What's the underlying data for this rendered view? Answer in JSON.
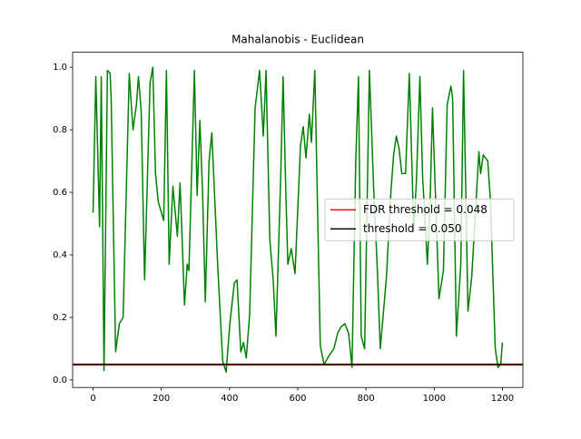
{
  "chart_data": {
    "type": "line",
    "title": "Mahalanobis - Euclidean",
    "xlim": [
      -60,
      1260
    ],
    "xticks": [
      0,
      200,
      400,
      600,
      800,
      1000,
      1200
    ],
    "ylim": [
      -0.024,
      1.048
    ],
    "yticks": [
      {
        "value": 0,
        "label": "0.0"
      },
      {
        "value": 0.2,
        "label": "0.2"
      },
      {
        "value": 0.4,
        "label": "0.4"
      },
      {
        "value": 0.6,
        "label": "0.6"
      },
      {
        "value": 0.8,
        "label": "0.8"
      },
      {
        "value": 1,
        "label": "1.0"
      }
    ],
    "series": [
      {
        "color": "#008000",
        "x": [
          0,
          8,
          19,
          24,
          32,
          42,
          50,
          53,
          66,
          77,
          88,
          106,
          117,
          127,
          133,
          141,
          151,
          167,
          175,
          183,
          191,
          207,
          215,
          223,
          234,
          247,
          255,
          268,
          276,
          281,
          297,
          305,
          313,
          321,
          329,
          340,
          348,
          366,
          380,
          390,
          401,
          414,
          422,
          433,
          441,
          449,
          459,
          475,
          488,
          499,
          507,
          518,
          528,
          536,
          550,
          557,
          565,
          571,
          581,
          592,
          608,
          616,
          624,
          634,
          640,
          650,
          658,
          666,
          677,
          693,
          706,
          717,
          727,
          738,
          749,
          759,
          770,
          778,
          786,
          796,
          810,
          823,
          833,
          842,
          860,
          873,
          881,
          889,
          897,
          905,
          916,
          927,
          940,
          948,
          958,
          966,
          980,
          988,
          995,
          1014,
          1027,
          1038,
          1049,
          1054,
          1065,
          1078,
          1086,
          1099,
          1110,
          1131,
          1136,
          1144,
          1157,
          1165,
          1179,
          1187,
          1195,
          1200
        ],
        "values": [
          0.535,
          0.97,
          0.49,
          0.97,
          0.03,
          0.99,
          0.98,
          0.9,
          0.09,
          0.18,
          0.2,
          0.98,
          0.8,
          0.88,
          0.97,
          0.86,
          0.32,
          0.95,
          1.0,
          0.66,
          0.57,
          0.51,
          0.99,
          0.37,
          0.62,
          0.46,
          0.63,
          0.24,
          0.37,
          0.35,
          0.99,
          0.59,
          0.83,
          0.6,
          0.25,
          0.7,
          0.79,
          0.35,
          0.06,
          0.025,
          0.18,
          0.31,
          0.32,
          0.09,
          0.12,
          0.07,
          0.21,
          0.87,
          0.99,
          0.78,
          0.99,
          0.45,
          0.32,
          0.14,
          0.65,
          0.97,
          0.6,
          0.37,
          0.42,
          0.34,
          0.75,
          0.81,
          0.71,
          0.85,
          0.76,
          0.99,
          0.55,
          0.11,
          0.05,
          0.08,
          0.1,
          0.15,
          0.17,
          0.18,
          0.15,
          0.04,
          0.7,
          0.97,
          0.14,
          0.1,
          0.99,
          0.6,
          0.36,
          0.1,
          0.33,
          0.6,
          0.72,
          0.78,
          0.74,
          0.66,
          0.66,
          0.98,
          0.48,
          0.64,
          0.97,
          0.65,
          0.37,
          0.57,
          0.87,
          0.26,
          0.35,
          0.88,
          0.94,
          0.9,
          0.14,
          0.37,
          0.99,
          0.22,
          0.33,
          0.73,
          0.66,
          0.72,
          0.7,
          0.57,
          0.1,
          0.04,
          0.05,
          0.12
        ]
      }
    ],
    "hlines": [
      {
        "name": "FDR threshold = 0.048",
        "color": "#ff0000",
        "value": 0.048
      },
      {
        "name": "threshold = 0.050",
        "color": "#000000",
        "value": 0.05
      }
    ],
    "legend": "center right"
  }
}
